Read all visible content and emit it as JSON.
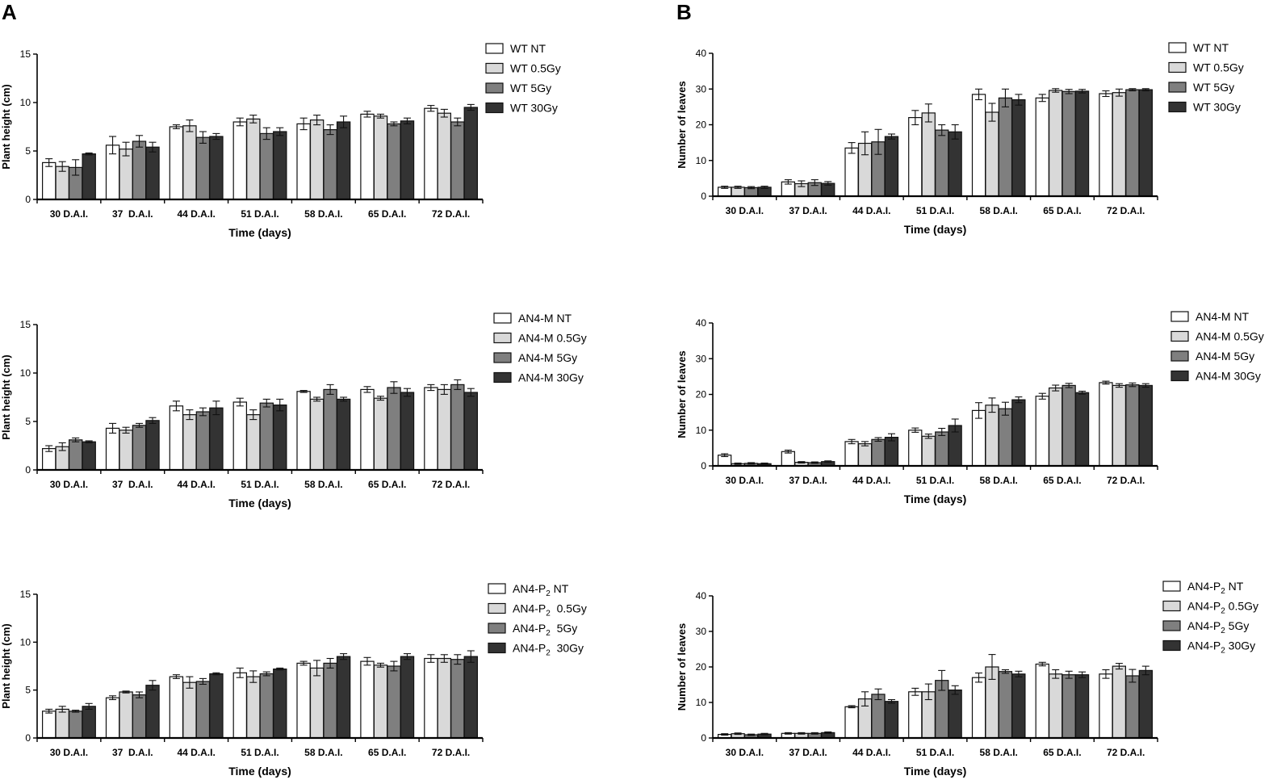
{
  "panel_labels": [
    "A",
    "B"
  ],
  "colors": {
    "NT": "#ffffff",
    "0.5Gy": "#d9d9d9",
    "5Gy": "#7f7f7f",
    "30Gy": "#333333",
    "stroke": "#111111"
  },
  "chart_data": [
    {
      "type": "bar",
      "panel": "A",
      "categories": [
        "30 D.A.I.",
        "37  D.A.I.",
        "44 D.A.I.",
        "51 D.A.I.",
        "58 D.A.I.",
        "65 D.A.I.",
        "72 D.A.I."
      ],
      "xlabel": "Time (days)",
      "ylabel": "Plant height (cm)",
      "ylim": [
        0,
        15
      ],
      "yticks": [
        0,
        5,
        10,
        15
      ],
      "series": [
        {
          "name": "WT NT",
          "values": [
            3.8,
            5.6,
            7.5,
            8.0,
            7.8,
            8.8,
            9.4
          ],
          "errors": [
            0.4,
            0.9,
            0.2,
            0.4,
            0.6,
            0.3,
            0.3
          ]
        },
        {
          "name": "WT 0.5Gy",
          "values": [
            3.4,
            5.2,
            7.6,
            8.3,
            8.2,
            8.6,
            8.9
          ],
          "errors": [
            0.5,
            0.7,
            0.6,
            0.4,
            0.5,
            0.2,
            0.4
          ]
        },
        {
          "name": "WT 5Gy",
          "values": [
            3.3,
            6.0,
            6.4,
            6.8,
            7.2,
            7.8,
            8.0
          ],
          "errors": [
            0.8,
            0.6,
            0.6,
            0.6,
            0.5,
            0.2,
            0.4
          ]
        },
        {
          "name": "WT 30Gy",
          "values": [
            4.7,
            5.4,
            6.5,
            7.0,
            8.0,
            8.1,
            9.5
          ],
          "errors": [
            0.1,
            0.5,
            0.3,
            0.4,
            0.6,
            0.3,
            0.3
          ]
        }
      ],
      "legend": [
        {
          "prefix": "WT NT"
        },
        {
          "prefix": "WT 0.5Gy"
        },
        {
          "prefix": "WT 5Gy"
        },
        {
          "prefix": "WT 30Gy"
        }
      ]
    },
    {
      "type": "bar",
      "panel": "B",
      "categories": [
        "30 D.A.I.",
        "37 D.A.I.",
        "44 D.A.I.",
        "51 D.A.I.",
        "58 D.A.I.",
        "65 D.A.I.",
        "72 D.A.I."
      ],
      "xlabel": "Time (days)",
      "ylabel": "Number of leaves",
      "ylim": [
        0,
        40
      ],
      "yticks": [
        0,
        10,
        20,
        30,
        40
      ],
      "series": [
        {
          "name": "WT NT",
          "values": [
            2.5,
            4.0,
            13.5,
            22.0,
            28.5,
            27.5,
            28.7
          ],
          "errors": [
            0.3,
            0.6,
            1.5,
            2.0,
            1.5,
            1.0,
            0.8
          ]
        },
        {
          "name": "WT 0.5Gy",
          "values": [
            2.5,
            3.5,
            14.8,
            23.3,
            23.5,
            29.6,
            29.0
          ],
          "errors": [
            0.3,
            0.8,
            3.2,
            2.5,
            2.5,
            0.5,
            1.0
          ]
        },
        {
          "name": "WT 5Gy",
          "values": [
            2.4,
            3.8,
            15.2,
            18.5,
            27.5,
            29.3,
            29.8
          ],
          "errors": [
            0.3,
            0.8,
            3.5,
            1.5,
            2.5,
            0.6,
            0.3
          ]
        },
        {
          "name": "WT 30Gy",
          "values": [
            2.5,
            3.6,
            16.7,
            18.0,
            27.0,
            29.4,
            29.8
          ],
          "errors": [
            0.3,
            0.5,
            0.7,
            2.0,
            1.5,
            0.5,
            0.3
          ]
        }
      ],
      "legend": [
        {
          "prefix": "WT NT"
        },
        {
          "prefix": "WT 0.5Gy"
        },
        {
          "prefix": "WT 5Gy"
        },
        {
          "prefix": "WT 30Gy"
        }
      ]
    },
    {
      "type": "bar",
      "panel": "A",
      "categories": [
        "30 D.A.I.",
        "37  D.A.I.",
        "44 D.A.I.",
        "51 D.A.I.",
        "58 D.A.I.",
        "65 D.A.I.",
        "72 D.A.I."
      ],
      "xlabel": "Time (days)",
      "ylabel": "Plant height (cm)",
      "ylim": [
        0,
        15
      ],
      "yticks": [
        0,
        5,
        10,
        15
      ],
      "series": [
        {
          "name": "AN4-M NT",
          "values": [
            2.2,
            4.3,
            6.6,
            7.0,
            8.1,
            8.3,
            8.5
          ],
          "errors": [
            0.3,
            0.5,
            0.5,
            0.4,
            0.1,
            0.3,
            0.3
          ]
        },
        {
          "name": "AN4-M 0.5Gy",
          "values": [
            2.4,
            4.1,
            5.7,
            5.7,
            7.3,
            7.4,
            8.3
          ],
          "errors": [
            0.4,
            0.3,
            0.5,
            0.5,
            0.2,
            0.2,
            0.5
          ]
        },
        {
          "name": "AN4-M 5Gy",
          "values": [
            3.1,
            4.6,
            6.0,
            6.9,
            8.3,
            8.5,
            8.8
          ],
          "errors": [
            0.2,
            0.2,
            0.4,
            0.4,
            0.5,
            0.6,
            0.5
          ]
        },
        {
          "name": "AN4-M 30Gy",
          "values": [
            2.9,
            5.1,
            6.4,
            6.7,
            7.3,
            8.0,
            8.0
          ],
          "errors": [
            0.1,
            0.3,
            0.7,
            0.6,
            0.2,
            0.4,
            0.4
          ]
        }
      ],
      "legend": [
        {
          "prefix": "AN4-M NT"
        },
        {
          "prefix": "AN4-M 0.5Gy"
        },
        {
          "prefix": "AN4-M 5Gy"
        },
        {
          "prefix": "AN4-M 30Gy"
        }
      ]
    },
    {
      "type": "bar",
      "panel": "B",
      "categories": [
        "30 D.A.I.",
        "37 D.A.I.",
        "44 D.A.I.",
        "51 D.A.I.",
        "58 D.A.I.",
        "65 D.A.I.",
        "72 D.A.I."
      ],
      "xlabel": "Time (days)",
      "ylabel": "Number of leaves",
      "ylim": [
        0,
        40
      ],
      "yticks": [
        0,
        10,
        20,
        30,
        40
      ],
      "series": [
        {
          "name": "AN4-M NT",
          "values": [
            3.0,
            4.0,
            6.8,
            10.0,
            15.5,
            19.5,
            23.3
          ],
          "errors": [
            0.4,
            0.4,
            0.6,
            0.6,
            2.2,
            0.8,
            0.4
          ]
        },
        {
          "name": "AN4-M 0.5Gy",
          "values": [
            0.6,
            1.0,
            6.2,
            8.3,
            17.0,
            21.8,
            22.5
          ],
          "errors": [
            0.2,
            0.2,
            0.6,
            0.6,
            2.0,
            0.8,
            0.5
          ]
        },
        {
          "name": "AN4-M 5Gy",
          "values": [
            0.7,
            0.9,
            7.4,
            9.5,
            16.0,
            22.5,
            22.7
          ],
          "errors": [
            0.2,
            0.2,
            0.5,
            1.0,
            1.8,
            0.6,
            0.5
          ]
        },
        {
          "name": "AN4-M 30Gy",
          "values": [
            0.6,
            1.2,
            8.0,
            11.3,
            18.5,
            20.5,
            22.5
          ],
          "errors": [
            0.2,
            0.2,
            1.0,
            1.8,
            0.8,
            0.4,
            0.5
          ]
        }
      ],
      "legend": [
        {
          "prefix": "AN4-M NT"
        },
        {
          "prefix": "AN4-M 0.5Gy"
        },
        {
          "prefix": "AN4-M 5Gy"
        },
        {
          "prefix": "AN4-M 30Gy"
        }
      ]
    },
    {
      "type": "bar",
      "panel": "A",
      "categories": [
        "30 D.A.I.",
        "37  D.A.I.",
        "44 D.A.I.",
        "51 D.A.I.",
        "58 D.A.I.",
        "65 D.A.I.",
        "72 D.A.I."
      ],
      "xlabel": "Time (days)",
      "ylabel": "Plant height (cm)",
      "ylim": [
        0,
        15
      ],
      "yticks": [
        0,
        5,
        10,
        15
      ],
      "series": [
        {
          "name": "AN4-P2 NT",
          "values": [
            2.8,
            4.2,
            6.4,
            6.8,
            7.8,
            8.0,
            8.3
          ],
          "errors": [
            0.2,
            0.2,
            0.2,
            0.5,
            0.2,
            0.4,
            0.4
          ]
        },
        {
          "name": "AN4-P2 0.5Gy",
          "values": [
            3.0,
            4.8,
            5.8,
            6.4,
            7.3,
            7.6,
            8.3
          ],
          "errors": [
            0.3,
            0.1,
            0.6,
            0.6,
            0.8,
            0.2,
            0.4
          ]
        },
        {
          "name": "AN4-P2 5Gy",
          "values": [
            2.8,
            4.5,
            5.9,
            6.7,
            7.8,
            7.5,
            8.2
          ],
          "errors": [
            0.1,
            0.3,
            0.3,
            0.2,
            0.5,
            0.5,
            0.5
          ]
        },
        {
          "name": "AN4-P2 30Gy",
          "values": [
            3.3,
            5.5,
            6.7,
            7.2,
            8.5,
            8.5,
            8.5
          ],
          "errors": [
            0.3,
            0.5,
            0.1,
            0.1,
            0.3,
            0.3,
            0.6
          ]
        }
      ],
      "legend": [
        {
          "prefix": "AN4-P",
          "sub": "2",
          "suffix": " NT"
        },
        {
          "prefix": "AN4-P",
          "sub": "2",
          "suffix": "  0.5Gy"
        },
        {
          "prefix": "AN4-P",
          "sub": "2",
          "suffix": "  5Gy"
        },
        {
          "prefix": "AN4-P",
          "sub": "2",
          "suffix": "  30Gy"
        }
      ]
    },
    {
      "type": "bar",
      "panel": "B",
      "categories": [
        "30 D.A.I.",
        "37 D.A.I.",
        "44 D.A.I.",
        "51 D.A.I.",
        "58 D.A.I.",
        "65 D.A.I.",
        "72 D.A.I."
      ],
      "xlabel": "Time (days)",
      "ylabel": "Number of leaves",
      "ylim": [
        0,
        40
      ],
      "yticks": [
        0,
        10,
        20,
        30,
        40
      ],
      "series": [
        {
          "name": "AN4-P2 NT",
          "values": [
            1.0,
            1.3,
            8.8,
            13.0,
            17.0,
            20.8,
            18.0
          ],
          "errors": [
            0.2,
            0.2,
            0.3,
            1.0,
            1.3,
            0.5,
            1.2
          ]
        },
        {
          "name": "AN4-P2 0.5Gy",
          "values": [
            1.2,
            1.3,
            11.0,
            13.0,
            20.0,
            18.0,
            20.2
          ],
          "errors": [
            0.2,
            0.2,
            2.0,
            2.2,
            3.5,
            1.2,
            0.8
          ]
        },
        {
          "name": "AN4-P2 5Gy",
          "values": [
            0.9,
            1.3,
            12.3,
            16.2,
            18.7,
            17.8,
            17.5
          ],
          "errors": [
            0.2,
            0.2,
            1.5,
            2.8,
            0.5,
            1.0,
            1.8
          ]
        },
        {
          "name": "AN4-P2 30Gy",
          "values": [
            1.1,
            1.5,
            10.3,
            13.5,
            18.0,
            17.8,
            19.0
          ],
          "errors": [
            0.2,
            0.2,
            0.5,
            1.2,
            0.8,
            0.8,
            1.2
          ]
        }
      ],
      "legend": [
        {
          "prefix": "AN4-P",
          "sub": "2",
          "suffix": " NT"
        },
        {
          "prefix": "AN4-P",
          "sub": "2",
          "suffix": " 0.5Gy"
        },
        {
          "prefix": "AN4-P",
          "sub": "2",
          "suffix": " 5Gy"
        },
        {
          "prefix": "AN4-P",
          "sub": "2",
          "suffix": " 30Gy"
        }
      ]
    }
  ]
}
